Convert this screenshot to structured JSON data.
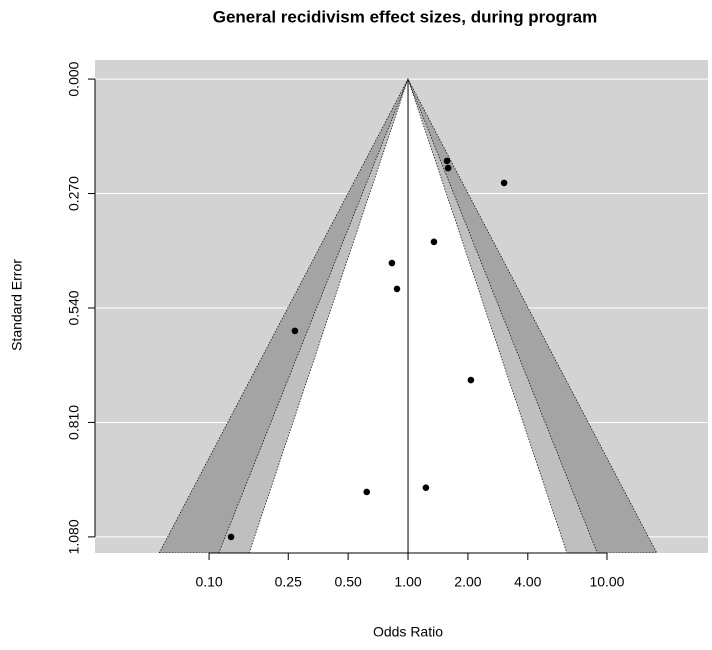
{
  "chart_data": {
    "type": "funnel",
    "title": "General recidivism effect sizes, during program",
    "x_label": "Odds Ratio",
    "y_label": "Standard Error",
    "x_log": true,
    "y_inverted": true,
    "grid": true,
    "background": "#d3d3d3",
    "grid_color": "#ffffff",
    "refline": 1,
    "contours": [
      {
        "level": 0.01,
        "color": "#a4a4a4"
      },
      {
        "level": 0.05,
        "color": "#bfbfbf"
      },
      {
        "level": 0.1,
        "color": "#ffffff"
      }
    ],
    "xlim": [
      0.0267,
      32.2
    ],
    "ylim": [
      -0.045,
      1.118
    ],
    "xticks": [
      {
        "value": 0.1,
        "label": "0.10"
      },
      {
        "value": 0.25,
        "label": "0.25"
      },
      {
        "value": 0.5,
        "label": "0.50"
      },
      {
        "value": 1,
        "label": "1.00"
      },
      {
        "value": 2,
        "label": "2.00"
      },
      {
        "value": 4,
        "label": "4.00"
      },
      {
        "value": 10,
        "label": "10.00"
      }
    ],
    "yticks": [
      {
        "value": 0,
        "label": "0.000"
      },
      {
        "value": 0.27,
        "label": "0.270"
      },
      {
        "value": 0.54,
        "label": "0.540"
      },
      {
        "value": 0.81,
        "label": "0.810"
      },
      {
        "value": 1.08,
        "label": "1.080"
      }
    ],
    "series": [
      {
        "color": "#000000",
        "x": [
          1.57,
          1.59,
          3.04,
          1.35,
          0.83,
          0.88,
          0.27,
          2.07,
          0.62,
          1.23,
          0.129
        ],
        "values": [
          0.193,
          0.21,
          0.245,
          0.384,
          0.434,
          0.495,
          0.594,
          0.71,
          0.974,
          0.964,
          1.08
        ]
      }
    ]
  }
}
